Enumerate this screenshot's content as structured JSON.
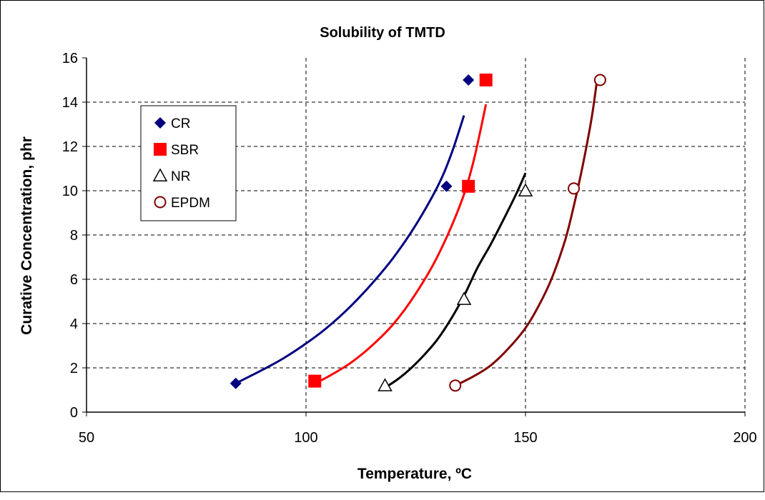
{
  "chart_data": {
    "type": "scatter",
    "title": "Solubility of TMTD",
    "xlabel": "Temperature, ºC",
    "ylabel": "Curative Concentration, phr",
    "xlim": [
      50,
      200
    ],
    "ylim": [
      0,
      16
    ],
    "xticks": [
      50,
      100,
      150,
      200
    ],
    "yticks": [
      0,
      2,
      4,
      6,
      8,
      10,
      12,
      14,
      16
    ],
    "grid": true,
    "legend_position": "top-left",
    "series": [
      {
        "name": "CR",
        "marker": "diamond",
        "color": "#00007f",
        "points": [
          [
            84,
            1.3
          ],
          [
            132,
            10.2
          ],
          [
            137,
            15.0
          ]
        ],
        "trend_color": "#000080",
        "trend": [
          [
            84,
            1.3
          ],
          [
            90,
            1.9
          ],
          [
            95,
            2.45
          ],
          [
            100,
            3.1
          ],
          [
            105,
            3.85
          ],
          [
            110,
            4.75
          ],
          [
            115,
            5.8
          ],
          [
            120,
            7.0
          ],
          [
            125,
            8.45
          ],
          [
            130,
            10.2
          ],
          [
            133,
            11.6
          ],
          [
            136,
            13.4
          ]
        ]
      },
      {
        "name": "SBR",
        "marker": "square",
        "color": "#ff0000",
        "points": [
          [
            102,
            1.4
          ],
          [
            137,
            10.2
          ],
          [
            141,
            15.0
          ]
        ],
        "trend_color": "#ff0000",
        "trend": [
          [
            102,
            1.3
          ],
          [
            105,
            1.6
          ],
          [
            110,
            2.2
          ],
          [
            115,
            3.0
          ],
          [
            120,
            4.0
          ],
          [
            125,
            5.35
          ],
          [
            130,
            7.05
          ],
          [
            135,
            9.3
          ],
          [
            138,
            11.2
          ],
          [
            141,
            13.9
          ]
        ]
      },
      {
        "name": "NR",
        "marker": "triangle",
        "color": "#000000",
        "points": [
          [
            118,
            1.2
          ],
          [
            136,
            5.1
          ],
          [
            150,
            10.0
          ]
        ],
        "trend_color": "#000000",
        "trend": [
          [
            118,
            1.1
          ],
          [
            121,
            1.5
          ],
          [
            124,
            2.0
          ],
          [
            127,
            2.6
          ],
          [
            130,
            3.3
          ],
          [
            133,
            4.2
          ],
          [
            136,
            5.25
          ],
          [
            139,
            6.5
          ],
          [
            142,
            7.55
          ],
          [
            145,
            8.7
          ],
          [
            148,
            9.9
          ],
          [
            150,
            10.8
          ]
        ]
      },
      {
        "name": "EPDM",
        "marker": "circle",
        "color": "#7f0000",
        "points": [
          [
            134,
            1.2
          ],
          [
            161,
            10.1
          ],
          [
            167,
            15.0
          ]
        ],
        "trend_color": "#800000",
        "trend": [
          [
            134,
            1.2
          ],
          [
            138,
            1.6
          ],
          [
            142,
            2.1
          ],
          [
            146,
            2.85
          ],
          [
            150,
            3.8
          ],
          [
            153,
            4.8
          ],
          [
            156,
            6.05
          ],
          [
            159,
            7.75
          ],
          [
            161,
            9.3
          ],
          [
            163,
            11.1
          ],
          [
            165,
            13.2
          ],
          [
            166.3,
            15.0
          ]
        ]
      }
    ]
  }
}
